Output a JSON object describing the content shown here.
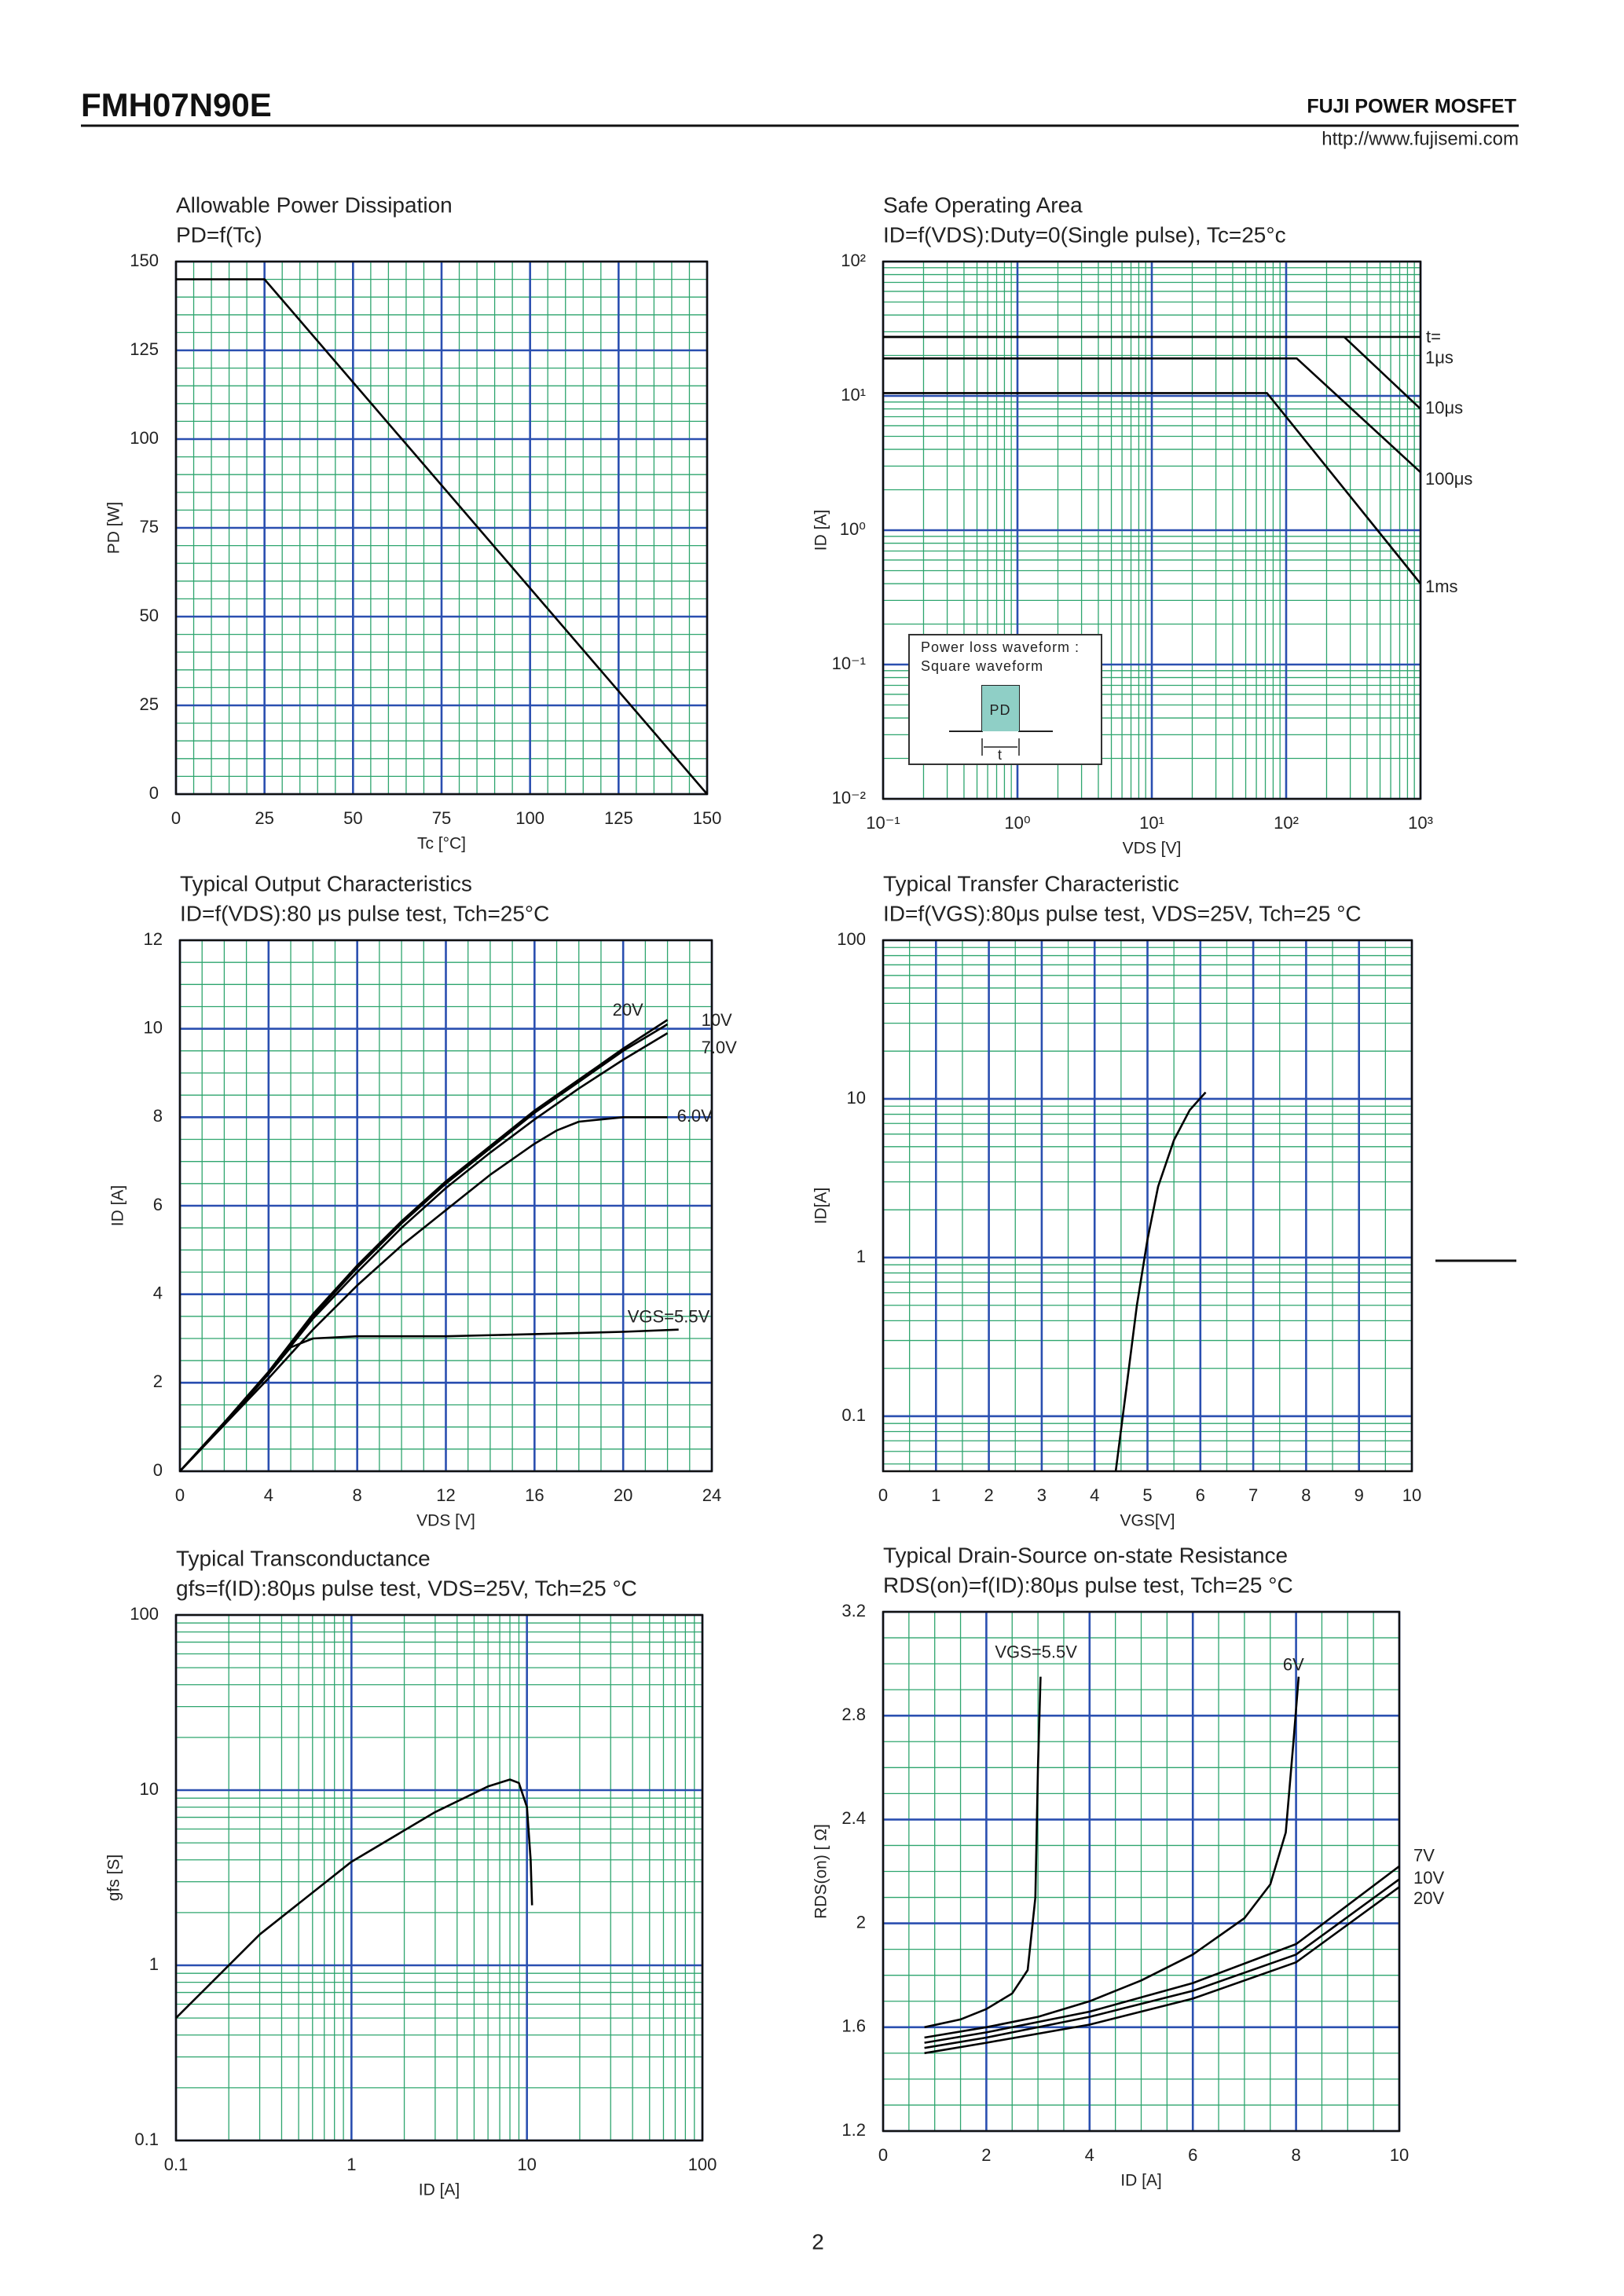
{
  "header": {
    "part": "FMH07N90E",
    "brand": "FUJI POWER MOSFET",
    "url": "http://www.fujisemi.com",
    "page": "2"
  },
  "chart_data": [
    {
      "type": "line",
      "title": "Allowable Power Dissipation",
      "subtitle": "PD=f(Tc)",
      "xlabel": "Tc [°C]",
      "ylabel": "PD [W]",
      "xlim": [
        0,
        150
      ],
      "ylim": [
        0,
        150
      ],
      "xticks": [
        0,
        25,
        50,
        75,
        100,
        125,
        150
      ],
      "yticks": [
        0,
        25,
        50,
        75,
        100,
        125,
        150
      ],
      "grid": true,
      "minor_grid": 5,
      "series": [
        {
          "color": "#000000",
          "x": [
            0,
            25,
            150
          ],
          "values": [
            145,
            145,
            0
          ]
        }
      ]
    },
    {
      "type": "line",
      "title": "Safe Operating Area",
      "subtitle": "ID=f(VDS):Duty=0(Single pulse), Tc=25°c",
      "xlabel": "VDS [V]",
      "ylabel": "ID [A]",
      "xscale": "log",
      "yscale": "log",
      "xlim": [
        0.1,
        1000
      ],
      "ylim": [
        0.01,
        100
      ],
      "xticks": [
        {
          "value": 0.1,
          "label": "10⁻¹"
        },
        {
          "value": 1,
          "label": "10⁰"
        },
        {
          "value": 10,
          "label": "10¹"
        },
        {
          "value": 100,
          "label": "10²"
        },
        {
          "value": 1000,
          "label": "10³"
        }
      ],
      "yticks": [
        {
          "value": 0.01,
          "label": "10⁻²"
        },
        {
          "value": 0.1,
          "label": "10⁻¹"
        },
        {
          "value": 1,
          "label": "10⁰"
        },
        {
          "value": 10,
          "label": "10¹"
        },
        {
          "value": 100,
          "label": "10²"
        }
      ],
      "grid": true,
      "note": "t=",
      "inset": {
        "lines": [
          "Power loss waveform :",
          "Square waveform"
        ],
        "pulse": "PD",
        "period": "t"
      },
      "series": [
        {
          "name": "1μs",
          "color": "#000000",
          "x": [
            0.1,
            1000
          ],
          "values": [
            27.5,
            27.5
          ]
        },
        {
          "name": "10μs",
          "color": "#000000",
          "x": [
            0.1,
            270,
            1000
          ],
          "values": [
            27.5,
            27.5,
            8
          ]
        },
        {
          "name": "100μs",
          "color": "#000000",
          "x": [
            0.1,
            120,
            1000
          ],
          "values": [
            19,
            19,
            2.7
          ]
        },
        {
          "name": "1ms",
          "color": "#000000",
          "x": [
            0.1,
            72,
            1000
          ],
          "values": [
            10.5,
            10.5,
            0.4
          ]
        }
      ]
    },
    {
      "type": "line",
      "title": "Typical Output Characteristics",
      "subtitle": "ID=f(VDS):80 μs pulse test, Tch=25°C",
      "xlabel": "VDS [V]",
      "ylabel": "ID [A]",
      "xlim": [
        0,
        24
      ],
      "ylim": [
        0,
        12
      ],
      "xticks": [
        0,
        4,
        8,
        12,
        16,
        20,
        24
      ],
      "yticks": [
        0,
        2,
        4,
        6,
        8,
        10,
        12
      ],
      "grid": true,
      "minor_grid": 4,
      "series": [
        {
          "name": "20V",
          "color": "#000000",
          "x": [
            0,
            2,
            4,
            6,
            8,
            10,
            12,
            14,
            16,
            18,
            20,
            22
          ],
          "values": [
            0,
            1.1,
            2.25,
            3.55,
            4.65,
            5.65,
            6.55,
            7.35,
            8.15,
            8.85,
            9.55,
            10.2
          ]
        },
        {
          "name": "10V",
          "color": "#000000",
          "x": [
            0,
            2,
            4,
            6,
            8,
            10,
            12,
            14,
            16,
            18,
            20,
            22
          ],
          "values": [
            0,
            1.1,
            2.2,
            3.5,
            4.6,
            5.6,
            6.5,
            7.3,
            8.1,
            8.8,
            9.5,
            10.1
          ]
        },
        {
          "name": "7.0V",
          "color": "#000000",
          "x": [
            0,
            2,
            4,
            6,
            8,
            10,
            12,
            14,
            16,
            18,
            20,
            22
          ],
          "values": [
            0,
            1.1,
            2.2,
            3.45,
            4.5,
            5.5,
            6.4,
            7.2,
            7.95,
            8.65,
            9.3,
            9.9
          ]
        },
        {
          "name": "6.0V",
          "color": "#000000",
          "x": [
            0,
            2,
            4,
            6,
            8,
            10,
            12,
            14,
            16,
            17,
            18,
            20,
            22
          ],
          "values": [
            0,
            1.05,
            2.1,
            3.2,
            4.2,
            5.1,
            5.9,
            6.7,
            7.4,
            7.7,
            7.9,
            8.0,
            8.0
          ]
        },
        {
          "name": "VGS=5.5V",
          "color": "#000000",
          "x": [
            0,
            2,
            4,
            5,
            6,
            8,
            12,
            16,
            20,
            22.5
          ],
          "values": [
            0,
            1.05,
            2.2,
            2.8,
            3.0,
            3.05,
            3.05,
            3.1,
            3.15,
            3.2
          ]
        }
      ]
    },
    {
      "type": "line",
      "title": "Typical Transfer Characteristic",
      "subtitle": "ID=f(VGS):80μs pulse test, VDS=25V, Tch=25 °C",
      "xlabel": "VGS[V]",
      "ylabel": "ID[A]",
      "yscale": "log",
      "xlim": [
        0,
        10
      ],
      "ylim": [
        0.045,
        100
      ],
      "xticks": [
        0,
        1,
        2,
        3,
        4,
        5,
        6,
        7,
        8,
        9,
        10
      ],
      "yticks": [
        0.1,
        1,
        10,
        100
      ],
      "grid": true,
      "minor_grid": 2,
      "series": [
        {
          "color": "#000000",
          "x": [
            4.4,
            4.6,
            4.8,
            5.0,
            5.2,
            5.5,
            5.8,
            6.1
          ],
          "values": [
            0.045,
            0.15,
            0.5,
            1.3,
            2.8,
            5.5,
            8.5,
            11
          ]
        }
      ]
    },
    {
      "type": "line",
      "title": "Typical Transconductance",
      "subtitle": "gfs=f(ID):80μs pulse test, VDS=25V, Tch=25  °C",
      "xlabel": "ID [A]",
      "ylabel": "gfs [S]",
      "xscale": "log",
      "yscale": "log",
      "xlim": [
        0.1,
        100
      ],
      "ylim": [
        0.1,
        100
      ],
      "xticks": [
        0.1,
        1,
        10,
        100
      ],
      "yticks": [
        0.1,
        1,
        10,
        100
      ],
      "grid": true,
      "series": [
        {
          "color": "#000000",
          "x": [
            0.1,
            0.3,
            1,
            3,
            6,
            8,
            9,
            10,
            10.5,
            10.7
          ],
          "values": [
            0.5,
            1.5,
            3.9,
            7.5,
            10.5,
            11.5,
            11,
            8,
            4,
            2.2
          ]
        }
      ]
    },
    {
      "type": "line",
      "title": "Typical Drain-Source on-state Resistance",
      "subtitle": "RDS(on)=f(ID):80μs pulse test, Tch=25  °C",
      "xlabel": "ID [A]",
      "ylabel": "RDS(on) [  Ω]",
      "xlim": [
        0,
        10
      ],
      "ylim": [
        1.2,
        3.2
      ],
      "xticks": [
        0,
        2,
        4,
        6,
        8,
        10
      ],
      "yticks": [
        1.2,
        1.6,
        2.0,
        2.4,
        2.8,
        3.2
      ],
      "grid": true,
      "minor_grid": 4,
      "series": [
        {
          "name": "VGS=5.5V",
          "color": "#000000",
          "x": [
            0.8,
            1.5,
            2,
            2.5,
            2.8,
            2.95,
            3.0,
            3.05
          ],
          "values": [
            1.6,
            1.63,
            1.67,
            1.73,
            1.82,
            2.1,
            2.6,
            2.95
          ]
        },
        {
          "name": "6V",
          "color": "#000000",
          "x": [
            0.8,
            2,
            3,
            4,
            5,
            6,
            7,
            7.5,
            7.8,
            7.95,
            8.05
          ],
          "values": [
            1.56,
            1.6,
            1.64,
            1.7,
            1.78,
            1.88,
            2.02,
            2.15,
            2.35,
            2.7,
            2.95
          ]
        },
        {
          "name": "7V",
          "color": "#000000",
          "x": [
            0.8,
            2,
            4,
            6,
            8,
            10
          ],
          "values": [
            1.54,
            1.58,
            1.66,
            1.77,
            1.92,
            2.22
          ]
        },
        {
          "name": "10V",
          "color": "#000000",
          "x": [
            0.8,
            2,
            4,
            6,
            8,
            10
          ],
          "values": [
            1.52,
            1.56,
            1.64,
            1.74,
            1.88,
            2.17
          ]
        },
        {
          "name": "20V",
          "color": "#000000",
          "x": [
            0.8,
            2,
            4,
            6,
            8,
            10
          ],
          "values": [
            1.5,
            1.54,
            1.61,
            1.71,
            1.85,
            2.14
          ]
        }
      ]
    }
  ]
}
